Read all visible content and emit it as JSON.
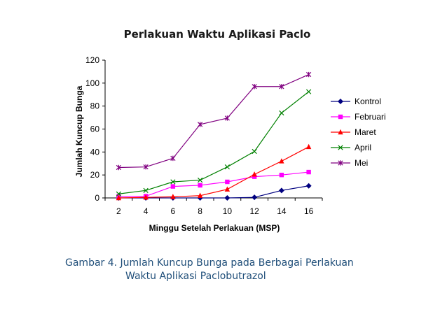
{
  "chart_data": {
    "type": "line",
    "title": "Perlakuan Waktu Aplikasi Paclo",
    "xlabel": "Minggu Setelah Perlakuan (MSP)",
    "ylabel": "Jumlah Kuncup Bunga",
    "x": [
      2,
      4,
      6,
      8,
      10,
      12,
      14,
      16
    ],
    "ylim": [
      0,
      120
    ],
    "yticks": [
      0,
      20,
      40,
      60,
      80,
      100,
      120
    ],
    "grid": false,
    "legend_position": "right",
    "series": [
      {
        "name": "Kontrol",
        "color": "#000080",
        "marker": "diamond",
        "values": [
          0,
          0,
          0,
          0,
          0,
          0.5,
          6.5,
          10.5
        ]
      },
      {
        "name": "Februari",
        "color": "#ff00ff",
        "marker": "square",
        "values": [
          1.5,
          1.5,
          10,
          11,
          14,
          18.5,
          20,
          22.5
        ]
      },
      {
        "name": "Maret",
        "color": "#ff0000",
        "marker": "triangle",
        "values": [
          0,
          0.5,
          1,
          2,
          7.5,
          20.5,
          32,
          44.5
        ]
      },
      {
        "name": "April",
        "color": "#008000",
        "marker": "x",
        "values": [
          3.5,
          6.5,
          14,
          15.5,
          27,
          40.5,
          74,
          92.5
        ]
      },
      {
        "name": "Mei",
        "color": "#800080",
        "marker": "star",
        "values": [
          26.5,
          27,
          34.5,
          64,
          69.5,
          97,
          97,
          107.5
        ]
      }
    ]
  },
  "caption": {
    "line1": "Gambar 4.  Jumlah Kuncup Bunga pada Berbagai Perlakuan",
    "line2": "Waktu Aplikasi Paclobutrazol"
  }
}
